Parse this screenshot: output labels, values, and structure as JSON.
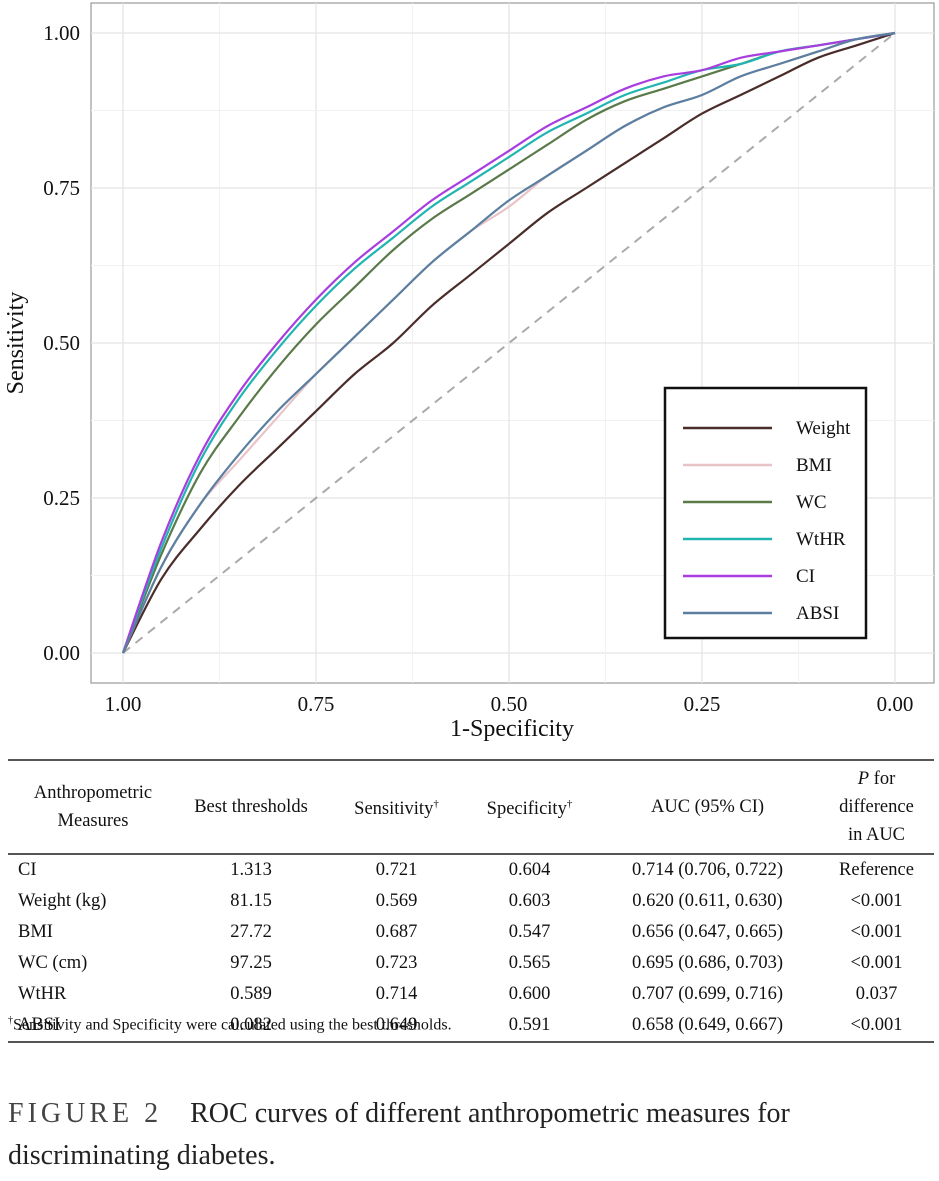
{
  "chart_data": {
    "type": "line",
    "xlabel": "1-Specificity",
    "ylabel": "Sensitivity",
    "xlim": [
      1.0,
      0.0
    ],
    "ylim": [
      0.0,
      1.0
    ],
    "x_reversed": true,
    "grid": true,
    "legend_position": "bottom-right",
    "x_ticks": [
      "1.00",
      "0.75",
      "0.50",
      "0.25",
      "0.00"
    ],
    "y_ticks": [
      "0.00",
      "0.25",
      "0.50",
      "0.75",
      "1.00"
    ],
    "reference_line": {
      "style": "dashed",
      "color": "#aaaaaa",
      "from": [
        1.0,
        0.0
      ],
      "to": [
        0.0,
        1.0
      ]
    },
    "series": [
      {
        "name": "Weight",
        "color": "#4a2d2a",
        "x": [
          1.0,
          0.95,
          0.9,
          0.85,
          0.8,
          0.75,
          0.7,
          0.65,
          0.6,
          0.55,
          0.5,
          0.45,
          0.4,
          0.35,
          0.3,
          0.25,
          0.2,
          0.15,
          0.1,
          0.05,
          0.0
        ],
        "y": [
          0.0,
          0.12,
          0.2,
          0.27,
          0.33,
          0.39,
          0.45,
          0.5,
          0.56,
          0.61,
          0.66,
          0.71,
          0.75,
          0.79,
          0.83,
          0.87,
          0.9,
          0.93,
          0.96,
          0.98,
          1.0
        ]
      },
      {
        "name": "BMI",
        "color": "#e8c4c8",
        "x": [
          1.0,
          0.95,
          0.9,
          0.85,
          0.8,
          0.75,
          0.7,
          0.65,
          0.6,
          0.55,
          0.5,
          0.45,
          0.4,
          0.35,
          0.3,
          0.25,
          0.2,
          0.15,
          0.1,
          0.05,
          0.0
        ],
        "y": [
          0.0,
          0.14,
          0.24,
          0.31,
          0.38,
          0.45,
          0.51,
          0.57,
          0.63,
          0.68,
          0.72,
          0.77,
          0.81,
          0.85,
          0.88,
          0.9,
          0.93,
          0.95,
          0.97,
          0.99,
          1.0
        ]
      },
      {
        "name": "WC",
        "color": "#5a7a4a",
        "x": [
          1.0,
          0.95,
          0.9,
          0.85,
          0.8,
          0.75,
          0.7,
          0.65,
          0.6,
          0.55,
          0.5,
          0.45,
          0.4,
          0.35,
          0.3,
          0.25,
          0.2,
          0.15,
          0.1,
          0.05,
          0.0
        ],
        "y": [
          0.0,
          0.16,
          0.29,
          0.38,
          0.46,
          0.53,
          0.59,
          0.65,
          0.7,
          0.74,
          0.78,
          0.82,
          0.86,
          0.89,
          0.91,
          0.93,
          0.95,
          0.97,
          0.98,
          0.99,
          1.0
        ]
      },
      {
        "name": "WtHR",
        "color": "#20b5b0",
        "x": [
          1.0,
          0.95,
          0.9,
          0.85,
          0.8,
          0.75,
          0.7,
          0.65,
          0.6,
          0.55,
          0.5,
          0.45,
          0.4,
          0.35,
          0.3,
          0.25,
          0.2,
          0.15,
          0.1,
          0.05,
          0.0
        ],
        "y": [
          0.0,
          0.17,
          0.31,
          0.41,
          0.49,
          0.56,
          0.62,
          0.67,
          0.72,
          0.76,
          0.8,
          0.84,
          0.87,
          0.9,
          0.92,
          0.94,
          0.95,
          0.97,
          0.98,
          0.99,
          1.0
        ]
      },
      {
        "name": "CI",
        "color": "#a83ee0",
        "x": [
          1.0,
          0.95,
          0.9,
          0.85,
          0.8,
          0.75,
          0.7,
          0.65,
          0.6,
          0.55,
          0.5,
          0.45,
          0.4,
          0.35,
          0.3,
          0.25,
          0.2,
          0.15,
          0.1,
          0.05,
          0.0
        ],
        "y": [
          0.0,
          0.18,
          0.32,
          0.42,
          0.5,
          0.57,
          0.63,
          0.68,
          0.73,
          0.77,
          0.81,
          0.85,
          0.88,
          0.91,
          0.93,
          0.94,
          0.96,
          0.97,
          0.98,
          0.99,
          1.0
        ]
      },
      {
        "name": "ABSI",
        "color": "#5a7fa0",
        "x": [
          1.0,
          0.95,
          0.9,
          0.85,
          0.8,
          0.75,
          0.7,
          0.65,
          0.6,
          0.55,
          0.5,
          0.45,
          0.4,
          0.35,
          0.3,
          0.25,
          0.2,
          0.15,
          0.1,
          0.05,
          0.0
        ],
        "y": [
          0.0,
          0.14,
          0.24,
          0.32,
          0.39,
          0.45,
          0.51,
          0.57,
          0.63,
          0.68,
          0.73,
          0.77,
          0.81,
          0.85,
          0.88,
          0.9,
          0.93,
          0.95,
          0.97,
          0.99,
          1.0
        ]
      }
    ]
  },
  "table": {
    "headers": [
      [
        "Anthropometric",
        "Measures"
      ],
      [
        "Best thresholds"
      ],
      [
        "Sensitivity",
        "†"
      ],
      [
        "Specificity",
        "†"
      ],
      [
        "AUC (95% CI)"
      ],
      [
        "P",
        " for difference",
        "in AUC"
      ]
    ],
    "rows": [
      [
        "CI",
        "1.313",
        "0.721",
        "0.604",
        "0.714 (0.706, 0.722)",
        "Reference"
      ],
      [
        "Weight (kg)",
        "81.15",
        "0.569",
        "0.603",
        "0.620 (0.611, 0.630)",
        "<0.001"
      ],
      [
        "BMI",
        "27.72",
        "0.687",
        "0.547",
        "0.656 (0.647, 0.665)",
        "<0.001"
      ],
      [
        "WC (cm)",
        "97.25",
        "0.723",
        "0.565",
        "0.695 (0.686, 0.703)",
        "<0.001"
      ],
      [
        "WtHR",
        "0.589",
        "0.714",
        "0.600",
        "0.707 (0.699, 0.716)",
        "0.037"
      ],
      [
        "ABSI",
        "0.082",
        "0.649",
        "0.591",
        "0.658 (0.649, 0.667)",
        "<0.001"
      ]
    ],
    "footnote_mark": "†",
    "footnote": "Sensitivity and Specificity were calculated using the best thresholds."
  },
  "caption": {
    "label": "FIGURE 2",
    "text": "ROC curves of different anthropometric measures for discriminating diabetes."
  }
}
